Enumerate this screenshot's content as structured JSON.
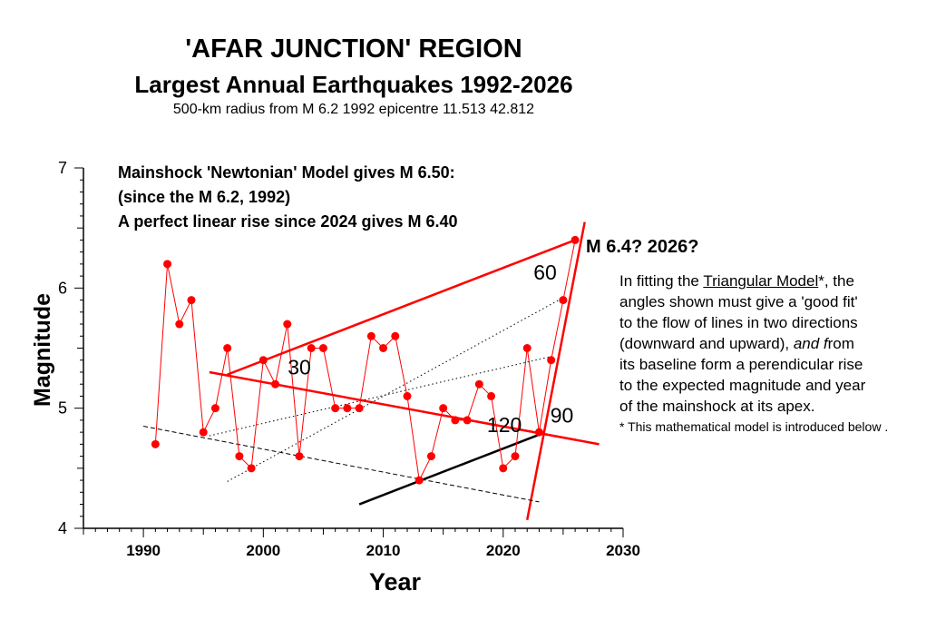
{
  "titles": {
    "line1": "'AFAR JUNCTION' REGION",
    "line2": "Largest Annual Earthquakes 1992-2026",
    "line3": "500-km radius from M 6.2 1992 epicentre 11.513 42.812"
  },
  "notes": {
    "line1": "Mainshock 'Newtonian' Model gives M 6.50:",
    "line2": "(since the M 6.2, 1992)",
    "line3": "A perfect linear rise since 2024 gives M 6.40"
  },
  "prediction_label": "M 6.4? 2026?",
  "side_text": {
    "l1_pre": "In fitting the ",
    "l1_link": "Triangular Model",
    "l1_post": "*, the",
    "l2": "angles shown must give a 'good fit'",
    "l3": "to the flow of lines in two directions",
    "l4_pre": "(downward and upward), ",
    "l4_em": "and f",
    "l4_post": "rom",
    "l5": "its baseline form a perendicular rise",
    "l6": "to the expected magnitude and year",
    "l7": "of the mainshock at its apex.",
    "footnote": "* This mathematical model is introduced below ."
  },
  "colors": {
    "data": "#ff0000",
    "axis": "#000000"
  },
  "chart_data": {
    "type": "line",
    "xlabel": "Year",
    "ylabel": "Magnitude",
    "xlim": [
      1985,
      2030
    ],
    "ylim": [
      4,
      7
    ],
    "x_ticks": [
      1990,
      2000,
      2010,
      2020,
      2030
    ],
    "y_ticks": [
      4,
      5,
      6,
      7
    ],
    "series": [
      {
        "x": [
          1991,
          1992,
          1993,
          1994,
          1995,
          1996,
          1997,
          1998,
          1999,
          2000,
          2001,
          2002,
          2003,
          2004,
          2005,
          2006,
          2007,
          2008,
          2009,
          2010,
          2011,
          2012,
          2013,
          2014,
          2015,
          2016,
          2017,
          2018,
          2019,
          2020,
          2021,
          2022,
          2023,
          2024,
          2025,
          2026
        ],
        "y": [
          4.7,
          6.2,
          5.7,
          5.9,
          4.8,
          5.0,
          5.5,
          4.6,
          4.5,
          5.4,
          5.2,
          5.7,
          4.6,
          5.5,
          5.5,
          5.0,
          5.0,
          5.0,
          5.6,
          5.5,
          5.6,
          5.1,
          4.4,
          4.6,
          5.0,
          4.9,
          4.9,
          5.2,
          5.1,
          4.5,
          4.6,
          5.5,
          4.8,
          5.4,
          5.9,
          6.4
        ]
      }
    ],
    "model_lines": [
      {
        "x": [
          1995.5,
          2028
        ],
        "y": [
          5.3,
          4.7
        ],
        "color": "#ff0000",
        "style": "solid"
      },
      {
        "x": [
          1997,
          2026
        ],
        "y": [
          5.28,
          6.4
        ],
        "color": "#ff0000",
        "style": "solid"
      },
      {
        "x": [
          2022,
          2026.8
        ],
        "y": [
          4.07,
          6.55
        ],
        "color": "#ff0000",
        "style": "solid"
      },
      {
        "x": [
          2008,
          2023
        ],
        "y": [
          4.2,
          4.78
        ],
        "color": "#000000",
        "style": "solid"
      },
      {
        "x": [
          1990,
          2023
        ],
        "y": [
          4.85,
          4.22
        ],
        "color": "#000000",
        "style": "dashed"
      },
      {
        "x": [
          1995.5,
          2024
        ],
        "y": [
          4.77,
          5.43
        ],
        "color": "#000000",
        "style": "dotted"
      },
      {
        "x": [
          1997,
          2025
        ],
        "y": [
          4.39,
          5.92
        ],
        "color": "#000000",
        "style": "dotted"
      }
    ],
    "angle_labels": [
      {
        "text": "30",
        "x": 2003,
        "y": 5.28
      },
      {
        "text": "60",
        "x": 2023.5,
        "y": 6.07
      },
      {
        "text": "120",
        "x": 2020.1,
        "y": 4.8
      },
      {
        "text": "90",
        "x": 2024.9,
        "y": 4.88
      }
    ]
  }
}
